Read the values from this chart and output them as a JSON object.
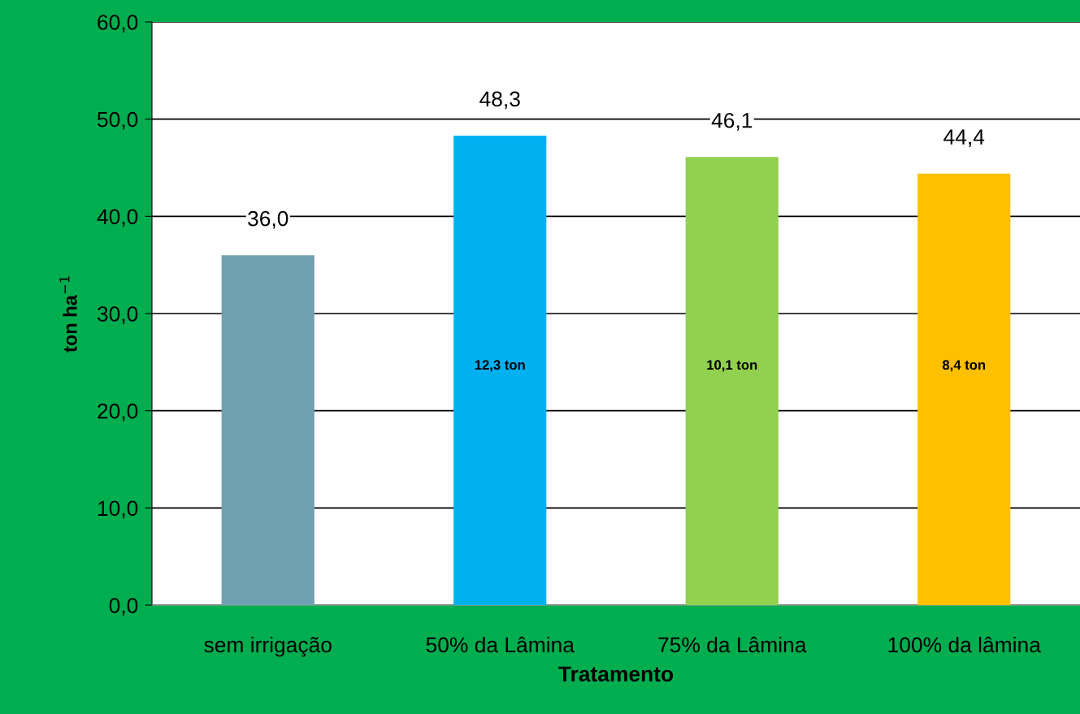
{
  "chart_data": {
    "type": "bar",
    "xlabel": "Tratamento",
    "ylabel": "ton ha$^{−1}$",
    "categories": [
      "sem irrigação",
      "50% da Lâmina",
      "75% da Lâmina",
      "100% da lâmina"
    ],
    "values": [
      36.0,
      48.3,
      46.1,
      44.4
    ],
    "colors": [
      "#6fa0b0",
      "#00b0f0",
      "#92d050",
      "#ffc000"
    ],
    "value_labels": [
      "36,0",
      "48,3",
      "46,1",
      "44,4"
    ],
    "ylim": [
      0,
      60
    ],
    "yticks": [
      {
        "value": 0,
        "label": "0,0"
      },
      {
        "value": 10,
        "label": "10,0"
      },
      {
        "value": 20,
        "label": "20,0"
      },
      {
        "value": 30,
        "label": "30,0"
      },
      {
        "value": 40,
        "label": "40,0"
      },
      {
        "value": 50,
        "label": "50,0"
      },
      {
        "value": 60,
        "label": "60,0"
      }
    ],
    "grid": "y",
    "annotations": [
      "12,3 ton",
      "10,1 ton",
      "8,4 ton"
    ]
  }
}
